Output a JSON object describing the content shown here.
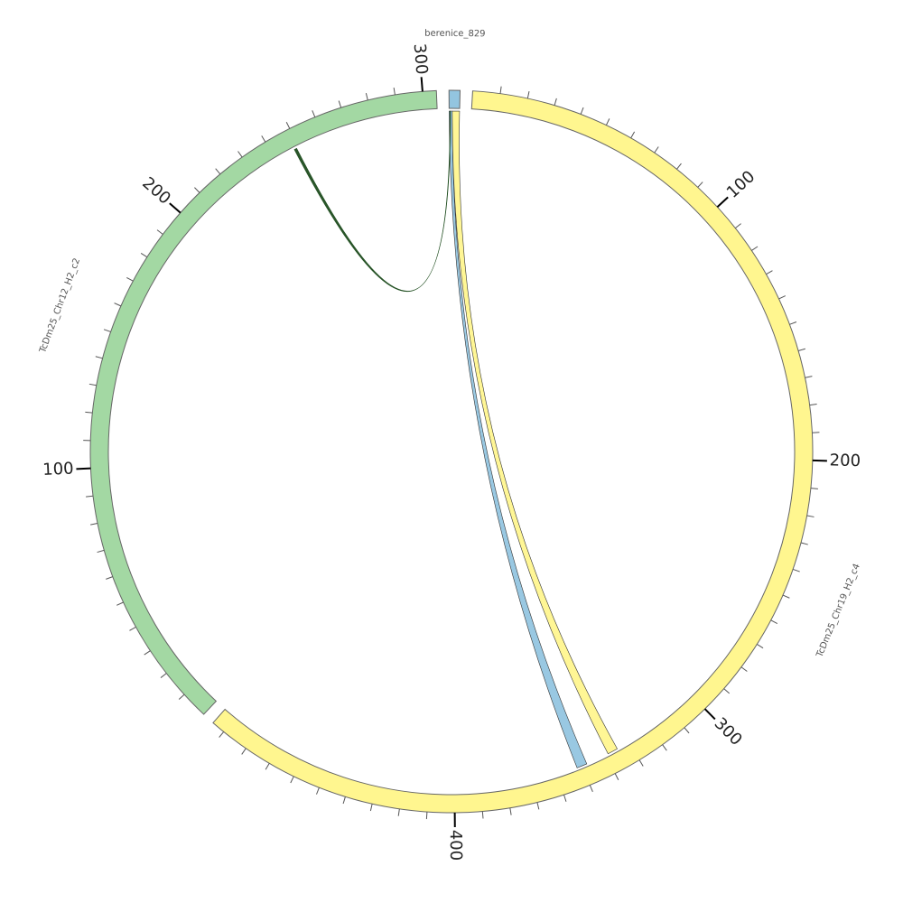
{
  "chart_data": {
    "type": "chord",
    "segments": [
      {
        "name": "berenice_829",
        "length": 4,
        "color": "#93c5e0"
      },
      {
        "name": "TcDm25_Chr19_H2_c4",
        "length": 495,
        "color": "#fff68f",
        "ticks": [
          100,
          200,
          300,
          400
        ]
      },
      {
        "name": "TcDm25_Chr12_H2_c2",
        "length": 305,
        "color": "#a3d8a3",
        "ticks": [
          100,
          200,
          300
        ]
      }
    ],
    "minor_tick_step": 10,
    "links": [
      {
        "source": 0,
        "source_range": [
          0,
          1.2
        ],
        "target": 1,
        "target_range": [
          348,
          352
        ],
        "color": "#93c5e0"
      },
      {
        "source": 0,
        "source_range": [
          1.2,
          4
        ],
        "target": 1,
        "target_range": [
          335,
          339
        ],
        "color": "#fff68f"
      },
      {
        "source": 2,
        "source_range": [
          248,
          249
        ],
        "target": 0,
        "target_range": [
          0.3,
          0.5
        ],
        "color": "#1f4d1f"
      }
    ]
  }
}
